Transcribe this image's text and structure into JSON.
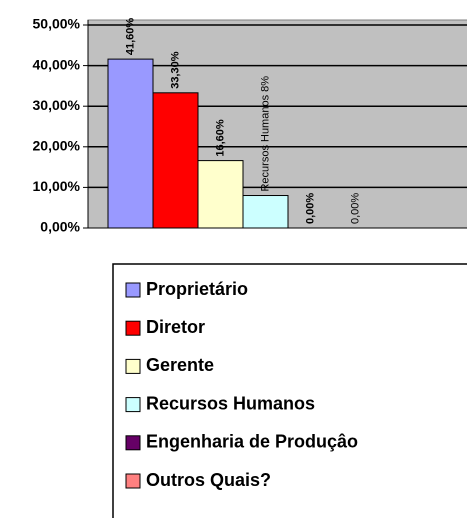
{
  "chart_data": {
    "type": "bar",
    "series": [
      {
        "name": "Proprietário",
        "color": "#9999ff",
        "values": [
          41.6
        ],
        "value_labels": [
          "41,60%"
        ],
        "label_bold": true
      },
      {
        "name": "Diretor",
        "color": "#ff0000",
        "values": [
          33.3
        ],
        "value_labels": [
          "33,30%"
        ],
        "label_bold": true
      },
      {
        "name": "Gerente",
        "color": "#ffffcc",
        "values": [
          16.6
        ],
        "value_labels": [
          "16,60%"
        ],
        "label_bold": true
      },
      {
        "name": "Recursos Humanos",
        "color": "#ccffff",
        "values": [
          8
        ],
        "value_labels": [
          "Recursos Humanos 8%"
        ],
        "label_bold": false
      },
      {
        "name": "Engenharia de Produçâo",
        "color": "#660066",
        "values": [
          0
        ],
        "value_labels": [
          "0,00%"
        ],
        "label_bold": true
      },
      {
        "name": "Outros Quais?",
        "color": "#ff8080",
        "values": [
          0
        ],
        "value_labels": [
          "0,00%"
        ],
        "label_bold": false
      }
    ],
    "ylim": [
      0,
      50
    ],
    "yticks": [
      {
        "value": 0,
        "label": "0,00%"
      },
      {
        "value": 10,
        "label": "10,00%"
      },
      {
        "value": 20,
        "label": "20,00%"
      },
      {
        "value": 30,
        "label": "30,00%"
      },
      {
        "value": 40,
        "label": "40,00%"
      },
      {
        "value": 50,
        "label": "50,00%"
      }
    ],
    "grid": true
  }
}
